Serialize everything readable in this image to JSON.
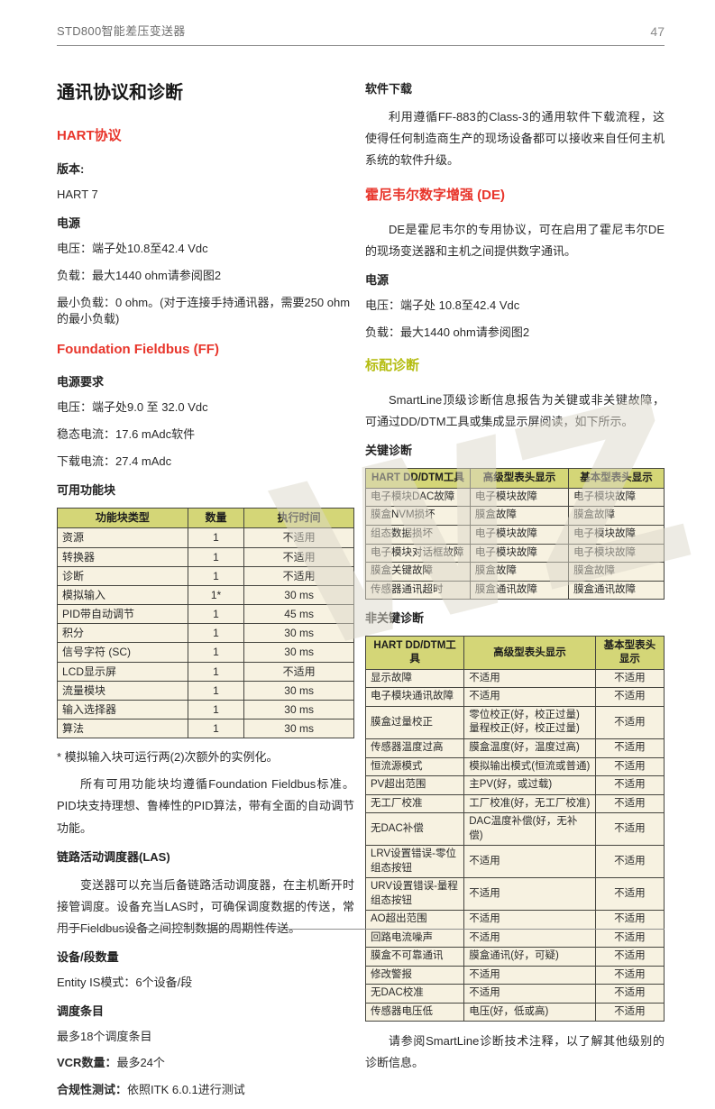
{
  "page": {
    "header": {
      "title": "STD800智能差压变送器",
      "page_number": "47"
    },
    "watermark": "WZ"
  },
  "columns": {
    "left": {
      "blocks": [
        {
          "t": "h1",
          "text": "通讯协议和诊断"
        },
        {
          "t": "h2",
          "color": "red",
          "text": "HART协议"
        },
        {
          "t": "b",
          "text": "版本:"
        },
        {
          "t": "p",
          "text": "HART 7"
        },
        {
          "t": "b",
          "text": "电源"
        },
        {
          "t": "p",
          "text": "电压：端子处10.8至42.4 Vdc"
        },
        {
          "t": "p",
          "text": "负载：最大1440 ohm请参阅图2"
        },
        {
          "t": "p",
          "text": "最小负载：0 ohm。(对于连接手持通讯器，需要250 ohm的最小负载)"
        },
        {
          "t": "h2",
          "color": "red",
          "text": "Foundation Fieldbus (FF)"
        },
        {
          "t": "b",
          "text": "电源要求"
        },
        {
          "t": "p",
          "text": "电压：端子处9.0 至 32.0 Vdc"
        },
        {
          "t": "p",
          "text": "稳态电流：17.6 mAdc软件"
        },
        {
          "t": "p",
          "text": "下载电流：27.4 mAdc"
        },
        {
          "t": "b",
          "text": "可用功能块"
        },
        {
          "t": "table",
          "name": "function-blocks-table",
          "col_widths": [
            "44%",
            "19%",
            "37%"
          ],
          "align": [
            "left",
            "center",
            "center"
          ],
          "header": [
            "功能块类型",
            "数量",
            "执行时间"
          ],
          "rows": [
            [
              "资源",
              "1",
              "不适用"
            ],
            [
              "转换器",
              "1",
              "不适用"
            ],
            [
              "诊断",
              "1",
              "不适用"
            ],
            [
              "模拟输入",
              "1*",
              "30 ms"
            ],
            [
              "PID带自动调节",
              "1",
              "45 ms"
            ],
            [
              "积分",
              "1",
              "30 ms"
            ],
            [
              "信号字符 (SC)",
              "1",
              "30 ms"
            ],
            [
              "LCD显示屏",
              "1",
              "不适用"
            ],
            [
              "流量模块",
              "1",
              "30 ms"
            ],
            [
              "输入选择器",
              "1",
              "30 ms"
            ],
            [
              "算法",
              "1",
              "30 ms"
            ]
          ]
        },
        {
          "t": "note",
          "text": "* 模拟输入块可运行两(2)次额外的实例化。"
        },
        {
          "t": "pi",
          "text": "所有可用功能块均遵循Foundation Fieldbus标准。PID块支持理想、鲁棒性的PID算法，带有全面的自动调节功能。"
        },
        {
          "t": "b",
          "text": "链路活动调度器(LAS)"
        },
        {
          "t": "pi",
          "text": "变送器可以充当后备链路活动调度器，在主机断开时接管调度。设备充当LAS时，可确保调度数据的传送，常用于Fieldbus设备之间控制数据的周期性传送。"
        },
        {
          "t": "b",
          "text": "设备/段数量"
        },
        {
          "t": "p",
          "text": "Entity IS模式：6个设备/段"
        },
        {
          "t": "b",
          "text": "调度条目"
        },
        {
          "t": "p",
          "text": "最多18个调度条目"
        },
        {
          "t": "lb",
          "label": "VCR数量：",
          "text": "最多24个"
        },
        {
          "t": "lb",
          "label": "合规性测试：",
          "text": "依照ITK 6.0.1进行测试"
        }
      ]
    },
    "right": {
      "blocks": [
        {
          "t": "b",
          "text": "软件下载"
        },
        {
          "t": "pi",
          "text": "利用遵循FF-883的Class-3的通用软件下载流程，这使得任何制造商生产的现场设备都可以接收来自任何主机系统的软件升级。"
        },
        {
          "t": "h2",
          "color": "red",
          "text": "霍尼韦尔数字增强 (DE)"
        },
        {
          "t": "pi",
          "text": "DE是霍尼韦尔的专用协议，可在启用了霍尼韦尔DE的现场变送器和主机之间提供数字通讯。"
        },
        {
          "t": "b",
          "text": "电源"
        },
        {
          "t": "p",
          "text": "电压：端子处 10.8至42.4 Vdc"
        },
        {
          "t": "p",
          "text": "负载：最大1440 ohm请参阅图2"
        },
        {
          "t": "h2",
          "color": "olive",
          "text": "标配诊断"
        },
        {
          "t": "pi",
          "text": "SmartLine顶级诊断信息报告为关键或非关键故障，可通过DD/DTM工具或集成显示屏阅读，如下所示。"
        },
        {
          "t": "b",
          "text": "关键诊断"
        },
        {
          "t": "table",
          "name": "critical-diagnostics-table",
          "col_widths": [
            "35%",
            "33%",
            "32%"
          ],
          "align": [
            "left",
            "left",
            "left"
          ],
          "header": [
            "HART DD/DTM工具",
            "高级型表头显示",
            "基本型表头显示"
          ],
          "rows": [
            [
              "电子模块DAC故障",
              "电子模块故障",
              "电子模块故障"
            ],
            [
              "膜盒NVM损坏",
              "膜盒故障",
              "膜盒故障"
            ],
            [
              "组态数据损坏",
              "电子模块故障",
              "电子模块故障"
            ],
            [
              "电子模块对话框故障",
              "电子模块故障",
              "电子模块故障"
            ],
            [
              "膜盒关键故障",
              "膜盒故障",
              "膜盒故障"
            ],
            [
              "传感器通讯超时",
              "膜盒通讯故障",
              "膜盒通讯故障"
            ]
          ]
        },
        {
          "t": "b",
          "text": "非关键诊断"
        },
        {
          "t": "table",
          "name": "noncritical-diagnostics-table",
          "col_widths": [
            "33%",
            "44%",
            "23%"
          ],
          "align": [
            "left",
            "left",
            "center"
          ],
          "header": [
            "HART DD/DTM工具",
            "高级型表头显示",
            "基本型表头显示"
          ],
          "rows": [
            [
              "显示故障",
              "不适用",
              "不适用"
            ],
            [
              "电子模块通讯故障",
              "不适用",
              "不适用"
            ],
            [
              "膜盒过量校正",
              "零位校正(好，校正过量)\n量程校正(好，校正过量)",
              "不适用"
            ],
            [
              "传感器温度过高",
              "膜盒温度(好，温度过高)",
              "不适用"
            ],
            [
              "恒流源模式",
              "模拟输出模式(恒流或普通)",
              "不适用"
            ],
            [
              "PV超出范围",
              "主PV(好，或过载)",
              "不适用"
            ],
            [
              "无工厂校准",
              "工厂校准(好，无工厂校准)",
              "不适用"
            ],
            [
              "无DAC补偿",
              "DAC温度补偿(好，无补偿)",
              "不适用"
            ],
            [
              "LRV设置错误-零位组态按钮",
              "不适用",
              "不适用"
            ],
            [
              "URV设置错误-量程组态按钮",
              "不适用",
              "不适用"
            ],
            [
              "AO超出范围",
              "不适用",
              "不适用"
            ],
            [
              "回路电流噪声",
              "不适用",
              "不适用"
            ],
            [
              "膜盒不可靠通讯",
              "膜盒通讯(好，可疑)",
              "不适用"
            ],
            [
              "修改警报",
              "不适用",
              "不适用"
            ],
            [
              "无DAC校准",
              "不适用",
              "不适用"
            ],
            [
              "传感器电压低",
              "电压(好，低或高)",
              "不适用"
            ]
          ]
        },
        {
          "t": "pi",
          "text": "请参阅SmartLine诊断技术注释，以了解其他级别的诊断信息。"
        }
      ]
    }
  }
}
